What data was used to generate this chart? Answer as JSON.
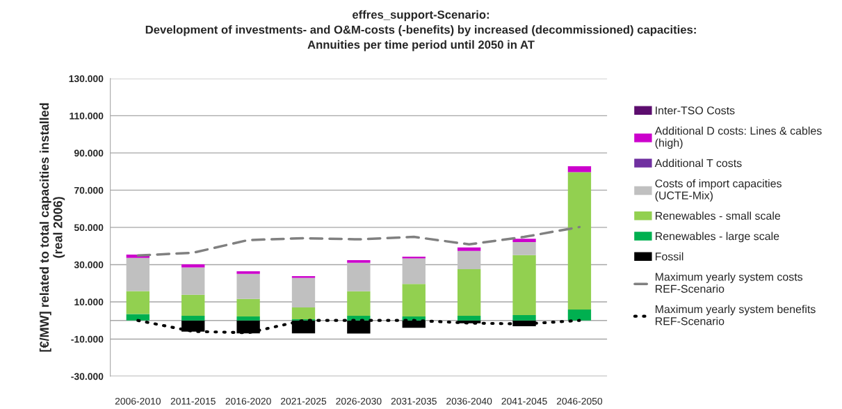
{
  "chart_data": {
    "type": "bar",
    "stacked": true,
    "title": "effres_support-Scenario:\nDevelopment of investments- and O&M-costs (-benefits) by increased (decommissioned) capacities:\nAnnuities per time period until 2050 in AT",
    "ylabel": "[€/MW] related to total capacities installed\n(real 2006)",
    "categories": [
      "2006-2010",
      "2011-2015",
      "2016-2020",
      "2021-2025",
      "2026-2030",
      "2031-2035",
      "2036-2040",
      "2041-2045",
      "2046-2050"
    ],
    "ylim": [
      -30000,
      130000
    ],
    "yticks": [
      {
        "value": -30000,
        "label": "-30.000"
      },
      {
        "value": -10000,
        "label": "-10.000"
      },
      {
        "value": 10000,
        "label": "10.000"
      },
      {
        "value": 30000,
        "label": "30.000"
      },
      {
        "value": 50000,
        "label": "50.000"
      },
      {
        "value": 70000,
        "label": "70.000"
      },
      {
        "value": 90000,
        "label": "90.000"
      },
      {
        "value": 110000,
        "label": "110.000"
      },
      {
        "value": 130000,
        "label": "130.000"
      }
    ],
    "grid": "y",
    "legend": "right",
    "series": [
      {
        "name": "Fossil",
        "color": "#000000",
        "values": [
          0,
          -6000,
          -6900,
          -6900,
          -7000,
          -3900,
          -1500,
          -3100,
          0
        ]
      },
      {
        "name": "Renewables - large scale",
        "color": "#00b050",
        "values": [
          3400,
          2500,
          2100,
          600,
          2500,
          2100,
          2500,
          2900,
          5900
        ]
      },
      {
        "name": "Renewables - small scale",
        "color": "#92d050",
        "values": [
          12400,
          11300,
          9500,
          6400,
          13200,
          17500,
          25000,
          32200,
          73800
        ]
      },
      {
        "name": "Costs of import capacities (UCTE-Mix)",
        "color": "#c0c0c0",
        "values": [
          17800,
          14700,
          13400,
          15900,
          15300,
          13700,
          9900,
          7000,
          0
        ]
      },
      {
        "name": "Additional T costs",
        "color": "#7030a0",
        "values": [
          0,
          0,
          0,
          0,
          0,
          0,
          0,
          0,
          0
        ]
      },
      {
        "name": "Additional D costs: Lines & cables (high)",
        "color": "#cc00cc",
        "values": [
          1800,
          1700,
          1400,
          900,
          1400,
          1000,
          1800,
          1800,
          3200
        ]
      },
      {
        "name": "Inter-TSO Costs",
        "color": "#5c0d6e",
        "values": [
          0,
          0,
          0,
          0,
          0,
          0,
          0,
          0,
          0
        ]
      },
      {
        "name": "Maximum yearly system costs REF-Scenario",
        "type": "line",
        "color": "#808080",
        "line_style": "dashed",
        "values": [
          34900,
          36400,
          43200,
          44200,
          43600,
          44900,
          40900,
          44900,
          50200
        ]
      },
      {
        "name": "Maximum yearly system benefits REF-Scenario",
        "type": "line",
        "color": "#000000",
        "line_style": "dotted",
        "values": [
          0,
          -5900,
          -6600,
          0,
          0,
          0,
          -1400,
          -1900,
          0
        ]
      }
    ]
  }
}
